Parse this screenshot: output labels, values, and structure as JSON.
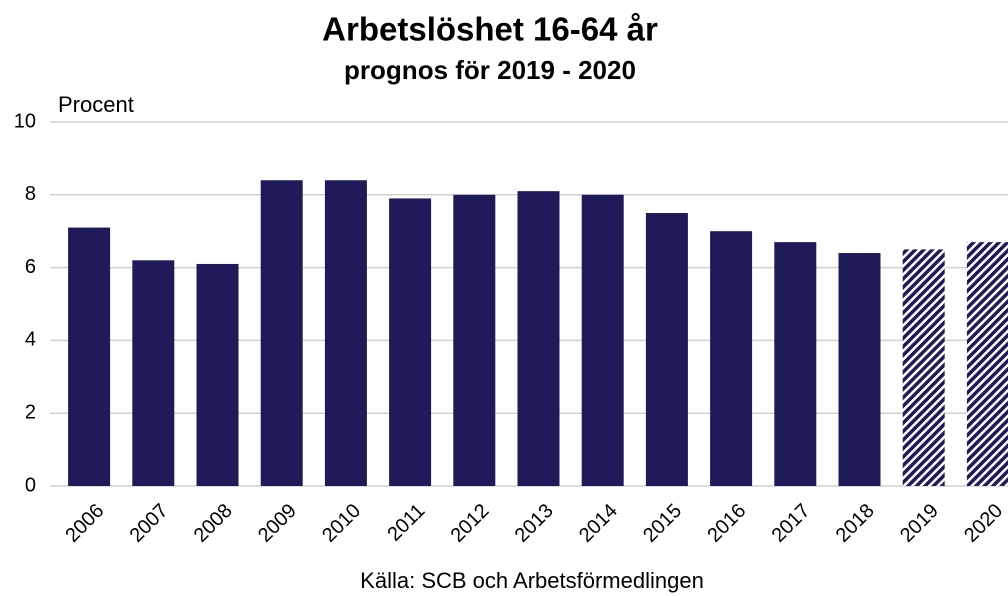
{
  "chart_data": {
    "type": "bar",
    "title": "Arbetslöshet 16-64 år",
    "subtitle": "prognos för 2019 - 2020",
    "y_label": "Procent",
    "source": "Källa: SCB och Arbetsförmedlingen",
    "categories": [
      "2006",
      "2007",
      "2008",
      "2009",
      "2010",
      "2011",
      "2012",
      "2013",
      "2014",
      "2015",
      "2016",
      "2017",
      "2018",
      "2019",
      "2020"
    ],
    "values": [
      7.1,
      6.2,
      6.1,
      8.4,
      8.4,
      7.9,
      8.0,
      8.1,
      8.0,
      7.5,
      7.0,
      6.7,
      6.4,
      6.5,
      6.7
    ],
    "bar_patterns": [
      "solid",
      "solid",
      "solid",
      "solid",
      "solid",
      "solid",
      "solid",
      "solid",
      "solid",
      "solid",
      "solid",
      "solid",
      "solid",
      "hatch",
      "hatch"
    ],
    "color": "#1f1b5a",
    "ylim": [
      0,
      10
    ],
    "yticks": [
      0,
      2,
      4,
      6,
      8,
      10
    ],
    "grid": true
  }
}
